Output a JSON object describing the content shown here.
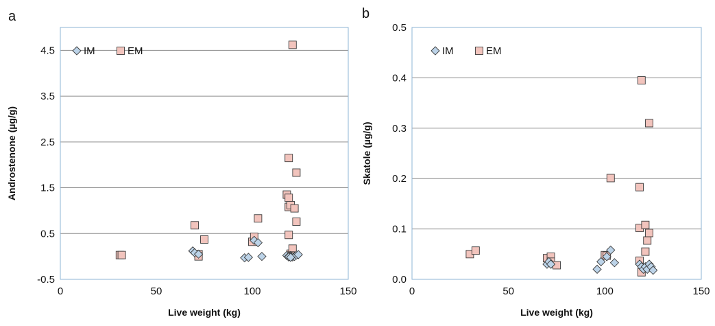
{
  "chart_data": [
    {
      "panel": "a",
      "type": "scatter",
      "xlabel": "Live weight (kg)",
      "ylabel": "Androstenone (µg/g)",
      "xlim": [
        0,
        150
      ],
      "ylim": [
        -0.5,
        5.0
      ],
      "xticks": [
        0,
        50,
        100,
        150
      ],
      "yticks": [
        -0.5,
        0.5,
        1.5,
        2.5,
        3.5,
        4.5
      ],
      "grid": "horizontal",
      "legend": "top-left",
      "colors": {
        "IM": "#bcd3e8",
        "EM": "#f2c4bd",
        "edge": "#3a3a3a",
        "plot_border": "#8eb4d6",
        "grid": "#8c8c8c"
      },
      "series": [
        {
          "name": "IM",
          "marker": "diamond",
          "points": [
            [
              69,
              0.12
            ],
            [
              70,
              0.08
            ],
            [
              72,
              0.05
            ],
            [
              96,
              -0.03
            ],
            [
              98,
              -0.02
            ],
            [
              101,
              0.35
            ],
            [
              103,
              0.3
            ],
            [
              105,
              0.0
            ],
            [
              118,
              0.02
            ],
            [
              119,
              0.0
            ],
            [
              119,
              -0.01
            ],
            [
              120,
              0.02
            ],
            [
              120,
              0.0
            ],
            [
              121,
              -0.01
            ],
            [
              122,
              0.0
            ],
            [
              123,
              0.03
            ],
            [
              124,
              0.04
            ],
            [
              119,
              -0.01
            ],
            [
              120,
              -0.02
            ]
          ]
        },
        {
          "name": "EM",
          "marker": "square",
          "points": [
            [
              31,
              0.03
            ],
            [
              32,
              0.03
            ],
            [
              70,
              0.68
            ],
            [
              72,
              0.05
            ],
            [
              72,
              0.0
            ],
            [
              75,
              0.37
            ],
            [
              100,
              0.32
            ],
            [
              101,
              0.43
            ],
            [
              103,
              0.83
            ],
            [
              118,
              1.35
            ],
            [
              119,
              2.15
            ],
            [
              119,
              1.28
            ],
            [
              119,
              1.08
            ],
            [
              119,
              0.47
            ],
            [
              120,
              1.12
            ],
            [
              120,
              0.06
            ],
            [
              121,
              0.17
            ],
            [
              121,
              4.62
            ],
            [
              122,
              1.05
            ],
            [
              123,
              1.83
            ],
            [
              123,
              0.76
            ],
            [
              120,
              0.02
            ]
          ]
        }
      ]
    },
    {
      "panel": "b",
      "type": "scatter",
      "xlabel": "Live weight (kg)",
      "ylabel": "Skatole (µg/g)",
      "xlim": [
        0,
        150
      ],
      "ylim": [
        0.0,
        0.5
      ],
      "xticks": [
        0,
        50,
        100,
        150
      ],
      "yticks": [
        0.0,
        0.1,
        0.2,
        0.3,
        0.4,
        0.5
      ],
      "ytick_labels": [
        "0.0",
        "0.1",
        "0.2",
        "0.3",
        "0.4",
        "0.5"
      ],
      "grid": "horizontal",
      "legend": "top-left",
      "colors": {
        "IM": "#bcd3e8",
        "EM": "#f2c4bd",
        "edge": "#3a3a3a",
        "plot_border": "#8eb4d6",
        "grid": "#8c8c8c"
      },
      "series": [
        {
          "name": "IM",
          "marker": "diamond",
          "points": [
            [
              70,
              0.03
            ],
            [
              71,
              0.035
            ],
            [
              72,
              0.03
            ],
            [
              96,
              0.02
            ],
            [
              98,
              0.035
            ],
            [
              101,
              0.045
            ],
            [
              103,
              0.058
            ],
            [
              105,
              0.033
            ],
            [
              118,
              0.03
            ],
            [
              119,
              0.025
            ],
            [
              120,
              0.02
            ],
            [
              121,
              0.025
            ],
            [
              122,
              0.02
            ],
            [
              123,
              0.03
            ],
            [
              124,
              0.025
            ],
            [
              125,
              0.018
            ]
          ]
        },
        {
          "name": "EM",
          "marker": "square",
          "points": [
            [
              30,
              0.05
            ],
            [
              33,
              0.057
            ],
            [
              70,
              0.042
            ],
            [
              72,
              0.045
            ],
            [
              72,
              0.035
            ],
            [
              75,
              0.028
            ],
            [
              100,
              0.048
            ],
            [
              101,
              0.047
            ],
            [
              103,
              0.201
            ],
            [
              118,
              0.183
            ],
            [
              118,
              0.037
            ],
            [
              118,
              0.102
            ],
            [
              119,
              0.395
            ],
            [
              119,
              0.014
            ],
            [
              121,
              0.108
            ],
            [
              121,
              0.055
            ],
            [
              122,
              0.077
            ],
            [
              123,
              0.31
            ],
            [
              123,
              0.092
            ]
          ]
        }
      ]
    }
  ]
}
